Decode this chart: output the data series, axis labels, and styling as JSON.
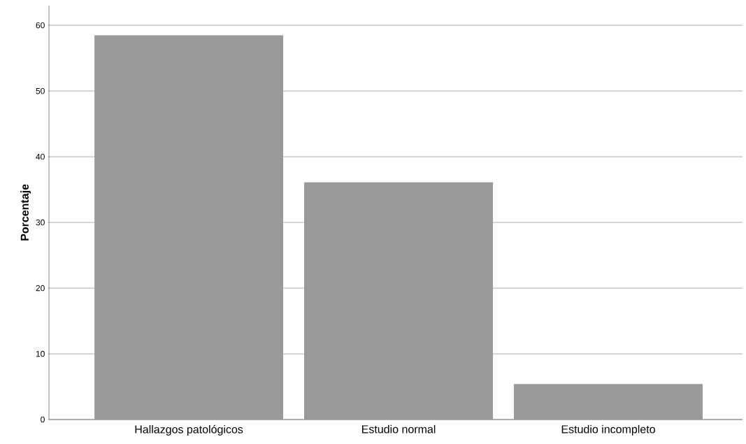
{
  "chart_data": {
    "type": "bar",
    "ylabel": "Porcentaje",
    "categories": [
      "Hallazgos patológicos",
      "Estudio normal",
      "Estudio incompleto"
    ],
    "values": [
      58.5,
      36.1,
      5.4
    ],
    "color": "#999999",
    "ylim": [
      0,
      63
    ],
    "yticks": [
      0,
      10,
      20,
      30,
      40,
      50,
      60
    ],
    "grid": "y"
  }
}
